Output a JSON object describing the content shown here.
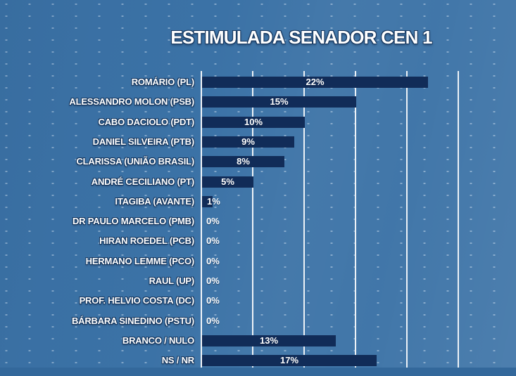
{
  "title": "ESTIMULADA SENADOR CEN 1",
  "chart_data": {
    "type": "bar",
    "orientation": "horizontal",
    "title": "ESTIMULADA SENADOR CEN 1",
    "categories": [
      "ROMÁRIO (PL)",
      "ALESSANDRO MOLON (PSB)",
      "CABO DACIOLO (PDT)",
      "DANIEL SILVEIRA (PTB)",
      "CLARISSA (UNIÃO BRASIL)",
      "ANDRÉ CECILIANO (PT)",
      "ITAGIBA (AVANTE)",
      "DR PAULO MARCELO (PMB)",
      "HIRAN ROEDEL (PCB)",
      "HERMANO LEMME (PCO)",
      "RAUL (UP)",
      "PROF. HELVIO COSTA (DC)",
      "BÁRBARA SINEDINO (PSTU)",
      "BRANCO / NULO",
      "NS / NR"
    ],
    "values": [
      22,
      15,
      10,
      9,
      8,
      5,
      1,
      0,
      0,
      0,
      0,
      0,
      0,
      13,
      17
    ],
    "value_labels": [
      "22%",
      "15%",
      "10%",
      "9%",
      "8%",
      "5%",
      "1%",
      "0%",
      "0%",
      "0%",
      "0%",
      "0%",
      "0%",
      "13%",
      "17%"
    ],
    "xlim": [
      0,
      25
    ],
    "gridline_values_pct": [
      0,
      5,
      10,
      15,
      20,
      25
    ],
    "grid": true,
    "legend": false,
    "bar_color": "#112C58",
    "value_label_color": "#FFFFFF",
    "category_label_color": "#FFFFFF"
  },
  "colors": {
    "background": "#3B72A6",
    "background_bottom_strip": "#33689B",
    "background_dots": "#CFE0F0",
    "gridline": "#EDF2F7",
    "bar": "#112C58",
    "title_text": "#FFFFFF",
    "text_outline": "#17375E"
  }
}
